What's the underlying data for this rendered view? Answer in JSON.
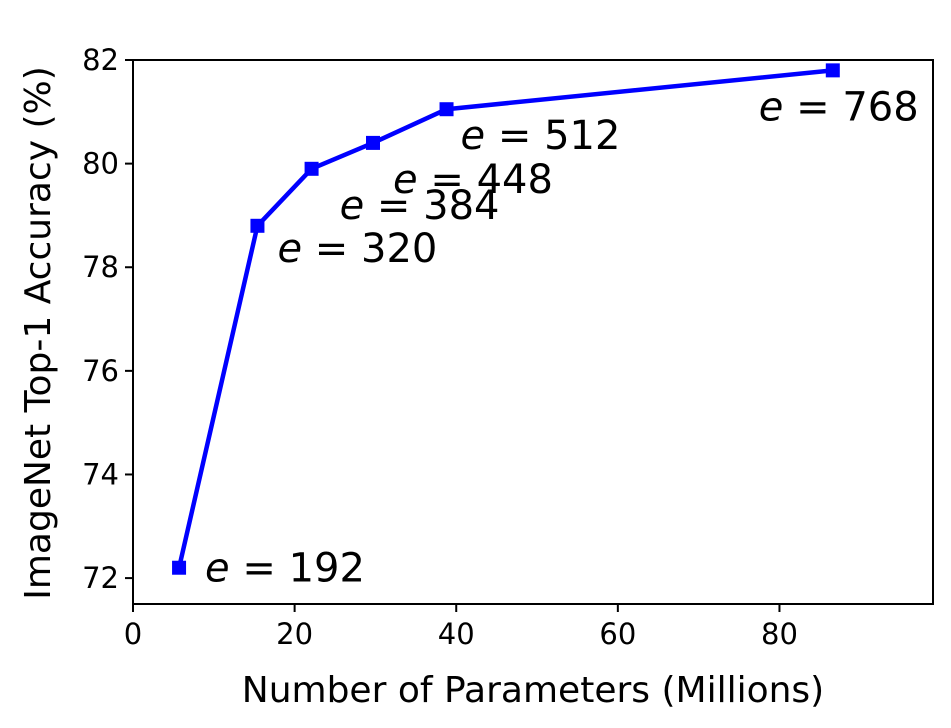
{
  "chart_data": {
    "type": "line",
    "xlabel": "Number of Parameters (Millions)",
    "ylabel": "ImageNet Top-1 Accuracy (%)",
    "xlim": [
      0,
      99
    ],
    "ylim": [
      71.5,
      82
    ],
    "xticks": [
      0,
      20,
      40,
      60,
      80
    ],
    "yticks": [
      72,
      74,
      76,
      78,
      80,
      82
    ],
    "grid": false,
    "color": "#0000ff",
    "marker": "square",
    "points": [
      {
        "x": 5.7,
        "y": 72.2,
        "label_var": "e",
        "label_eq": " = ",
        "label_value": "192"
      },
      {
        "x": 15.4,
        "y": 78.8,
        "label_var": "e",
        "label_eq": " = ",
        "label_value": "320"
      },
      {
        "x": 22.1,
        "y": 79.9,
        "label_var": "e",
        "label_eq": " = ",
        "label_value": "384"
      },
      {
        "x": 29.7,
        "y": 80.4,
        "label_var": "e",
        "label_eq": " = ",
        "label_value": "448"
      },
      {
        "x": 38.8,
        "y": 81.05,
        "label_var": "e",
        "label_eq": " = ",
        "label_value": "512"
      },
      {
        "x": 86.6,
        "y": 81.8,
        "label_var": "e",
        "label_eq": " = ",
        "label_value": "768"
      }
    ]
  }
}
